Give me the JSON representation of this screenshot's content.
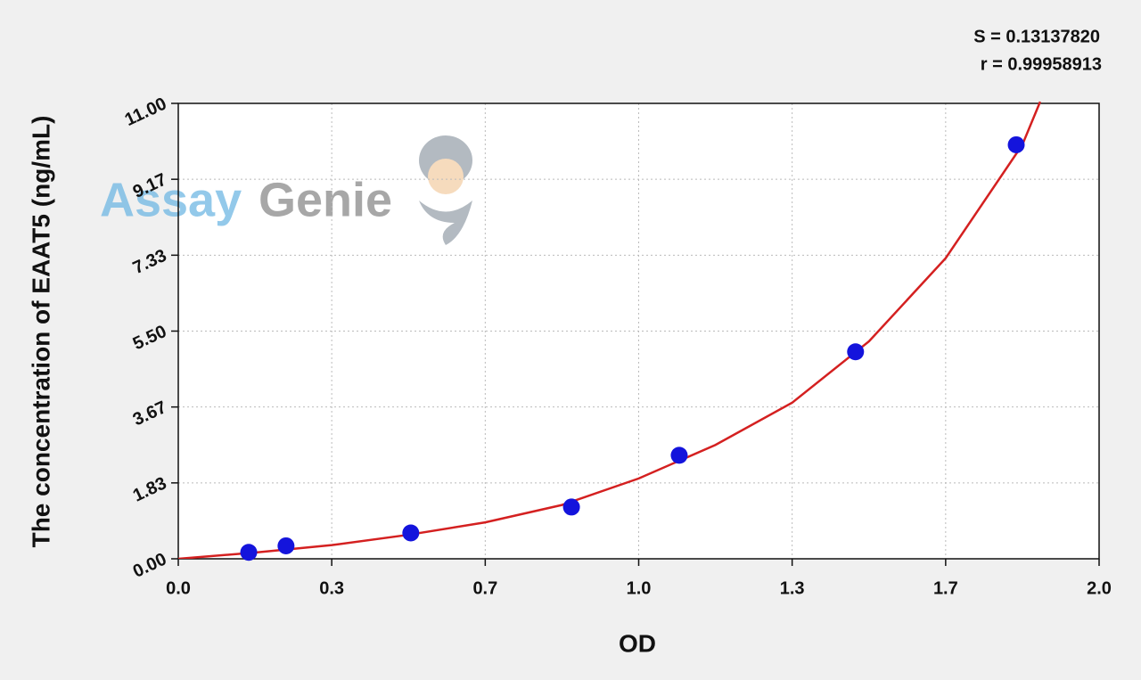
{
  "chart_data": {
    "type": "scatter",
    "annotations": [
      "S = 0.13137820",
      "r = 0.99958913"
    ],
    "watermark": [
      "Assay",
      "Genie"
    ],
    "x_label": "OD",
    "y_label": "The concentration of EAAT5 (ng/mL)",
    "xlim": [
      0,
      2
    ],
    "ylim": [
      0,
      11
    ],
    "xticks": [
      {
        "value": 0,
        "label": "0.0"
      },
      {
        "value": 0.3333,
        "label": "0.3"
      },
      {
        "value": 0.6667,
        "label": "0.7"
      },
      {
        "value": 1,
        "label": "1.0"
      },
      {
        "value": 1.3333,
        "label": "1.3"
      },
      {
        "value": 1.6667,
        "label": "1.7"
      },
      {
        "value": 2,
        "label": "2.0"
      }
    ],
    "yticks": [
      {
        "value": 0,
        "label": "0.00"
      },
      {
        "value": 1.8333,
        "label": "1.83"
      },
      {
        "value": 3.6667,
        "label": "3.67"
      },
      {
        "value": 5.5,
        "label": "5.50"
      },
      {
        "value": 7.3333,
        "label": "7.33"
      },
      {
        "value": 9.1667,
        "label": "9.17"
      },
      {
        "value": 11,
        "label": "11.00"
      }
    ],
    "grid": true,
    "series": [
      {
        "type": "line",
        "color": "#d42020",
        "x": [
          0,
          0.1667,
          0.3333,
          0.5,
          0.6667,
          0.8333,
          1,
          1.1667,
          1.3333,
          1.5,
          1.6667,
          1.8333,
          1.872
        ],
        "values": [
          0,
          0.15,
          0.33,
          0.58,
          0.88,
          1.3,
          1.94,
          2.75,
          3.77,
          5.25,
          7.26,
          10.0,
          11.04
        ]
      },
      {
        "type": "scatter",
        "color": "#1414dc",
        "x": [
          0.153,
          0.234,
          0.505,
          0.854,
          1.088,
          1.471,
          1.82
        ],
        "values": [
          0.156,
          0.313,
          0.625,
          1.25,
          2.5,
          5,
          10
        ]
      }
    ]
  }
}
